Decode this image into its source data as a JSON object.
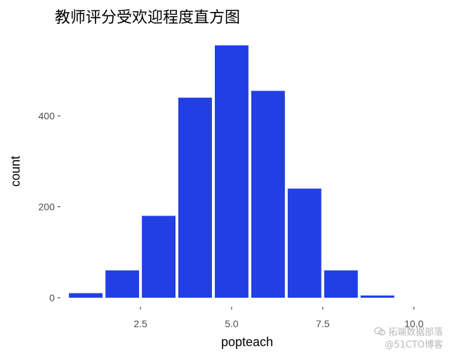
{
  "chart_data": {
    "type": "bar",
    "title": "教师评分受欢迎程度直方图",
    "xlabel": "popteach",
    "ylabel": "count",
    "x": [
      1,
      2,
      3,
      4,
      5,
      6,
      7,
      8,
      9
    ],
    "values": [
      10,
      60,
      180,
      440,
      555,
      455,
      240,
      60,
      5
    ],
    "bin_width": 1,
    "xlim": [
      0.38,
      10.2
    ],
    "ylim": [
      0,
      575
    ],
    "x_ticks": [
      2.5,
      5.0,
      7.5,
      10.0
    ],
    "x_tick_labels": [
      "2.5",
      "5.0",
      "7.5",
      "10.0"
    ],
    "y_ticks": [
      0,
      200,
      400
    ],
    "y_tick_labels": [
      "0",
      "200",
      "400"
    ],
    "bar_color": "#213fe3",
    "grid": false,
    "legend": "none"
  },
  "watermark": {
    "channel": "拓端数据部落",
    "site": "@51CTO博客"
  }
}
